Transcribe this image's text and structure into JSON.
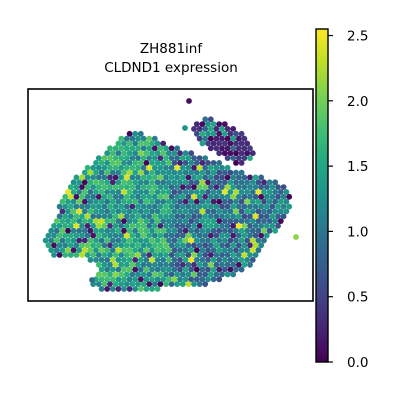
{
  "chart_data": {
    "type": "scatter",
    "title": "ZH881inf",
    "subtitle": "CLDND1 expression",
    "xlabel": "",
    "ylabel": "",
    "axes_ticks": false,
    "grid": false,
    "marker": "hexagonal spatial spots",
    "colormap": "viridis",
    "colorbar": {
      "min": 0.0,
      "max": 2.55,
      "ticks": [
        0.0,
        0.5,
        1.0,
        1.5,
        2.0,
        2.5
      ],
      "tick_labels": [
        "0.0",
        "0.5",
        "1.0",
        "1.5",
        "2.0",
        "2.5"
      ],
      "placement": "right"
    },
    "notes": "Spatial transcriptomics spot plot; individual spot values are not labeled and vary roughly between 0.0 and 2.5, mostly around 1.0-1.8.",
    "spot_clusters": [
      {
        "region": "main tissue body",
        "typical_value": 1.3
      },
      {
        "region": "upper-right lobe",
        "typical_value": 0.4
      },
      {
        "region": "lower-right fringe",
        "typical_value": 0.9
      }
    ]
  },
  "colors": {
    "viridis_low": "#440154",
    "viridis_mid": "#21918c",
    "viridis_high": "#fde725",
    "frame": "#000000"
  }
}
